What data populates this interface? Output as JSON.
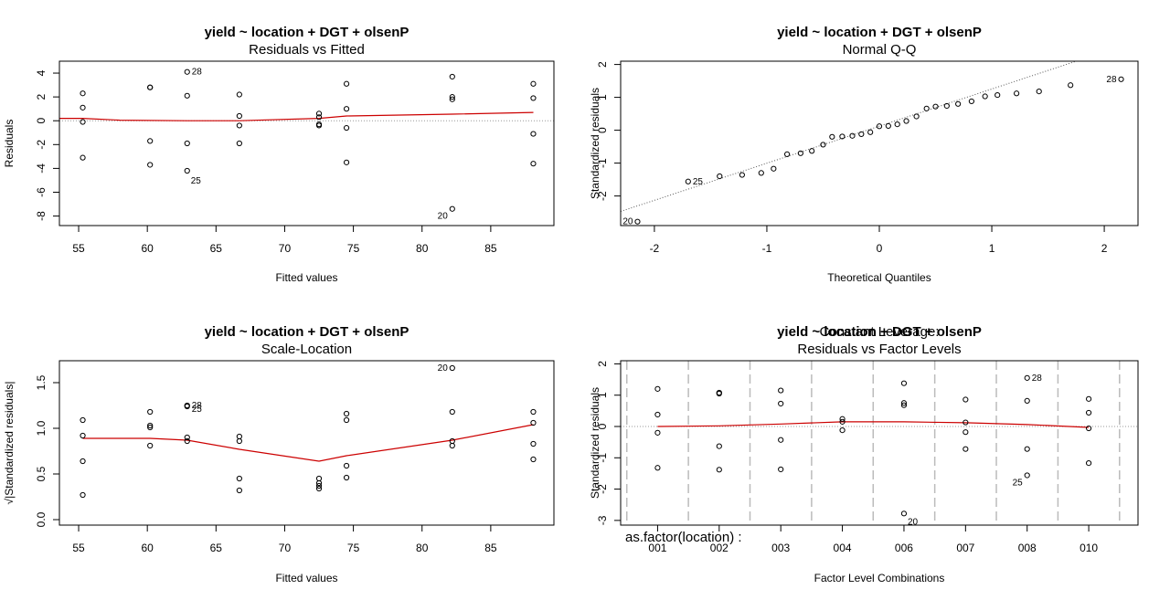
{
  "chart_data": [
    {
      "type": "scatter",
      "title": "yield ~ location + DGT + olsenP",
      "subtitle": "Residuals vs Fitted",
      "xlabel": "Fitted values",
      "ylabel": "Residuals",
      "xlim": [
        53.6,
        89.6
      ],
      "ylim": [
        -8.8,
        5.0
      ],
      "xticks": [
        55,
        60,
        65,
        70,
        75,
        80,
        85
      ],
      "yticks": [
        -8,
        -6,
        -4,
        -2,
        0,
        2,
        4
      ],
      "reference_line": 0,
      "points": [
        {
          "x": 55.3,
          "y": 2.3
        },
        {
          "x": 55.3,
          "y": 1.1
        },
        {
          "x": 55.3,
          "y": -0.1
        },
        {
          "x": 55.3,
          "y": -3.1
        },
        {
          "x": 60.2,
          "y": 2.8
        },
        {
          "x": 60.2,
          "y": 2.8
        },
        {
          "x": 60.2,
          "y": -1.7
        },
        {
          "x": 60.2,
          "y": -3.7
        },
        {
          "x": 62.9,
          "y": 4.1,
          "label": "28"
        },
        {
          "x": 62.9,
          "y": 2.1
        },
        {
          "x": 62.9,
          "y": -1.9
        },
        {
          "x": 62.9,
          "y": -4.2,
          "label": "25"
        },
        {
          "x": 66.7,
          "y": 2.2
        },
        {
          "x": 66.7,
          "y": 0.4
        },
        {
          "x": 66.7,
          "y": -0.4
        },
        {
          "x": 66.7,
          "y": -1.9
        },
        {
          "x": 72.5,
          "y": 0.6
        },
        {
          "x": 72.5,
          "y": 0.3
        },
        {
          "x": 72.5,
          "y": -0.3
        },
        {
          "x": 72.5,
          "y": -0.4
        },
        {
          "x": 74.5,
          "y": 3.1
        },
        {
          "x": 74.5,
          "y": 1.0
        },
        {
          "x": 74.5,
          "y": -0.6
        },
        {
          "x": 74.5,
          "y": -3.5
        },
        {
          "x": 82.2,
          "y": 3.7
        },
        {
          "x": 82.2,
          "y": 2.0
        },
        {
          "x": 82.2,
          "y": 1.8
        },
        {
          "x": 82.2,
          "y": -7.4,
          "label": "20"
        },
        {
          "x": 88.1,
          "y": 3.1
        },
        {
          "x": 88.1,
          "y": 1.9
        },
        {
          "x": 88.1,
          "y": -1.1
        },
        {
          "x": 88.1,
          "y": -3.6
        }
      ],
      "smooth": [
        [
          53.6,
          0.2
        ],
        [
          55.3,
          0.2
        ],
        [
          58.0,
          0.05
        ],
        [
          62.9,
          0.0
        ],
        [
          66.7,
          0.0
        ],
        [
          72.5,
          0.2
        ],
        [
          74.5,
          0.4
        ],
        [
          82.2,
          0.55
        ],
        [
          88.1,
          0.7
        ]
      ]
    },
    {
      "type": "scatter",
      "title": "yield ~ location + DGT + olsenP",
      "subtitle": "Normal Q-Q",
      "xlabel": "Theoretical Quantiles",
      "ylabel": "Standardized residuals",
      "xlim": [
        -2.3,
        2.3
      ],
      "ylim": [
        -2.9,
        2.1
      ],
      "xticks": [
        -2,
        -1,
        0,
        1,
        2
      ],
      "yticks": [
        -2,
        -1,
        0,
        1,
        2
      ],
      "reference_line_points": [
        [
          -2.3,
          -2.47
        ],
        [
          1.75,
          2.1
        ]
      ],
      "points": [
        {
          "x": -2.15,
          "y": -2.78,
          "label": "20"
        },
        {
          "x": -1.7,
          "y": -1.56,
          "label": "25"
        },
        {
          "x": -1.42,
          "y": -1.4
        },
        {
          "x": -1.22,
          "y": -1.36
        },
        {
          "x": -1.05,
          "y": -1.3
        },
        {
          "x": -0.94,
          "y": -1.17
        },
        {
          "x": -0.82,
          "y": -0.73
        },
        {
          "x": -0.7,
          "y": -0.7
        },
        {
          "x": -0.6,
          "y": -0.63
        },
        {
          "x": -0.5,
          "y": -0.44
        },
        {
          "x": -0.42,
          "y": -0.2
        },
        {
          "x": -0.33,
          "y": -0.19
        },
        {
          "x": -0.24,
          "y": -0.17
        },
        {
          "x": -0.16,
          "y": -0.12
        },
        {
          "x": -0.08,
          "y": -0.06
        },
        {
          "x": 0.0,
          "y": 0.12
        },
        {
          "x": 0.08,
          "y": 0.13
        },
        {
          "x": 0.16,
          "y": 0.18
        },
        {
          "x": 0.24,
          "y": 0.28
        },
        {
          "x": 0.33,
          "y": 0.42
        },
        {
          "x": 0.42,
          "y": 0.66
        },
        {
          "x": 0.5,
          "y": 0.72
        },
        {
          "x": 0.6,
          "y": 0.74
        },
        {
          "x": 0.7,
          "y": 0.8
        },
        {
          "x": 0.82,
          "y": 0.88
        },
        {
          "x": 0.94,
          "y": 1.03
        },
        {
          "x": 1.05,
          "y": 1.07
        },
        {
          "x": 1.22,
          "y": 1.12
        },
        {
          "x": 1.42,
          "y": 1.18
        },
        {
          "x": 1.7,
          "y": 1.37
        },
        {
          "x": 2.15,
          "y": 1.55,
          "label": "28"
        }
      ]
    },
    {
      "type": "scatter",
      "title": "yield ~ location + DGT + olsenP",
      "subtitle": "Scale-Location",
      "xlabel": "Fitted values",
      "ylabel": "√|Standardized residuals|",
      "xlim": [
        53.6,
        89.6
      ],
      "ylim": [
        -0.06,
        1.74
      ],
      "xticks": [
        55,
        60,
        65,
        70,
        75,
        80,
        85
      ],
      "yticks": [
        0.0,
        0.5,
        1.0,
        1.5
      ],
      "ytick_labels": [
        "0.0",
        "0.5",
        "1.0",
        "1.5"
      ],
      "points": [
        {
          "x": 55.3,
          "y": 1.09
        },
        {
          "x": 55.3,
          "y": 0.92
        },
        {
          "x": 55.3,
          "y": 0.64
        },
        {
          "x": 55.3,
          "y": 0.27
        },
        {
          "x": 60.2,
          "y": 1.18
        },
        {
          "x": 60.2,
          "y": 1.03
        },
        {
          "x": 60.2,
          "y": 1.01
        },
        {
          "x": 60.2,
          "y": 0.81
        },
        {
          "x": 62.9,
          "y": 1.25,
          "label": "28"
        },
        {
          "x": 62.9,
          "y": 1.24,
          "label": "25"
        },
        {
          "x": 62.9,
          "y": 0.9
        },
        {
          "x": 62.9,
          "y": 0.86
        },
        {
          "x": 66.7,
          "y": 0.91
        },
        {
          "x": 66.7,
          "y": 0.86
        },
        {
          "x": 66.7,
          "y": 0.45
        },
        {
          "x": 66.7,
          "y": 0.32
        },
        {
          "x": 72.5,
          "y": 0.45
        },
        {
          "x": 72.5,
          "y": 0.4
        },
        {
          "x": 72.5,
          "y": 0.37
        },
        {
          "x": 72.5,
          "y": 0.34
        },
        {
          "x": 74.5,
          "y": 1.16
        },
        {
          "x": 74.5,
          "y": 1.09
        },
        {
          "x": 74.5,
          "y": 0.59
        },
        {
          "x": 74.5,
          "y": 0.46
        },
        {
          "x": 82.2,
          "y": 1.66,
          "label": "20"
        },
        {
          "x": 82.2,
          "y": 1.18
        },
        {
          "x": 82.2,
          "y": 0.86
        },
        {
          "x": 82.2,
          "y": 0.81
        },
        {
          "x": 88.1,
          "y": 1.18
        },
        {
          "x": 88.1,
          "y": 1.06
        },
        {
          "x": 88.1,
          "y": 0.83
        },
        {
          "x": 88.1,
          "y": 0.66
        }
      ],
      "smooth": [
        [
          55.3,
          0.89
        ],
        [
          60.2,
          0.89
        ],
        [
          62.9,
          0.87
        ],
        [
          66.7,
          0.77
        ],
        [
          72.5,
          0.64
        ],
        [
          74.5,
          0.7
        ],
        [
          82.2,
          0.87
        ],
        [
          88.1,
          1.04
        ]
      ]
    },
    {
      "type": "scatter",
      "title": "yield ~ location + DGT + olsenP",
      "overlay_text": "Constant Leverage:",
      "subtitle": "Residuals vs Factor Levels",
      "xlabel": "Factor Level Combinations",
      "ylabel": "Standardized residuals",
      "factor_label": "as.factor(location) :",
      "xlim": [
        0.4,
        8.8
      ],
      "ylim": [
        -3.15,
        2.1
      ],
      "categories": [
        "001",
        "002",
        "003",
        "004",
        "006",
        "007",
        "008",
        "010"
      ],
      "yticks": [
        -3,
        -2,
        -1,
        0,
        1,
        2
      ],
      "points": [
        {
          "x": 1,
          "y": 1.2
        },
        {
          "x": 1,
          "y": 0.38
        },
        {
          "x": 1,
          "y": -0.2
        },
        {
          "x": 1,
          "y": -1.32
        },
        {
          "x": 2,
          "y": 1.08
        },
        {
          "x": 2,
          "y": 1.05
        },
        {
          "x": 2,
          "y": -0.63
        },
        {
          "x": 2,
          "y": -1.38
        },
        {
          "x": 3,
          "y": 1.15
        },
        {
          "x": 3,
          "y": 0.73
        },
        {
          "x": 3,
          "y": -0.43
        },
        {
          "x": 3,
          "y": -1.37
        },
        {
          "x": 4,
          "y": 0.24
        },
        {
          "x": 4,
          "y": 0.15
        },
        {
          "x": 4,
          "y": -0.12
        },
        {
          "x": 5,
          "y": 1.38
        },
        {
          "x": 5,
          "y": 0.75
        },
        {
          "x": 5,
          "y": 0.68
        },
        {
          "x": 5,
          "y": -2.78,
          "label": "20"
        },
        {
          "x": 6,
          "y": 0.86
        },
        {
          "x": 6,
          "y": 0.13
        },
        {
          "x": 6,
          "y": -0.18
        },
        {
          "x": 6,
          "y": -0.72
        },
        {
          "x": 7,
          "y": 1.55,
          "label": "28"
        },
        {
          "x": 7,
          "y": 0.82
        },
        {
          "x": 7,
          "y": -0.72
        },
        {
          "x": 7,
          "y": -1.56,
          "label": "25"
        },
        {
          "x": 8,
          "y": 0.88
        },
        {
          "x": 8,
          "y": 0.44
        },
        {
          "x": 8,
          "y": -0.06
        },
        {
          "x": 8,
          "y": -1.17
        }
      ],
      "smooth": [
        [
          1,
          0.0
        ],
        [
          2,
          0.02
        ],
        [
          3,
          0.08
        ],
        [
          4,
          0.15
        ],
        [
          5,
          0.15
        ],
        [
          6,
          0.12
        ],
        [
          7,
          0.06
        ],
        [
          8,
          -0.03
        ]
      ]
    }
  ],
  "colors": {
    "points": "#000000",
    "smooth": "#cc0000",
    "reference": "#999999",
    "separator": "#bbbbbb"
  }
}
